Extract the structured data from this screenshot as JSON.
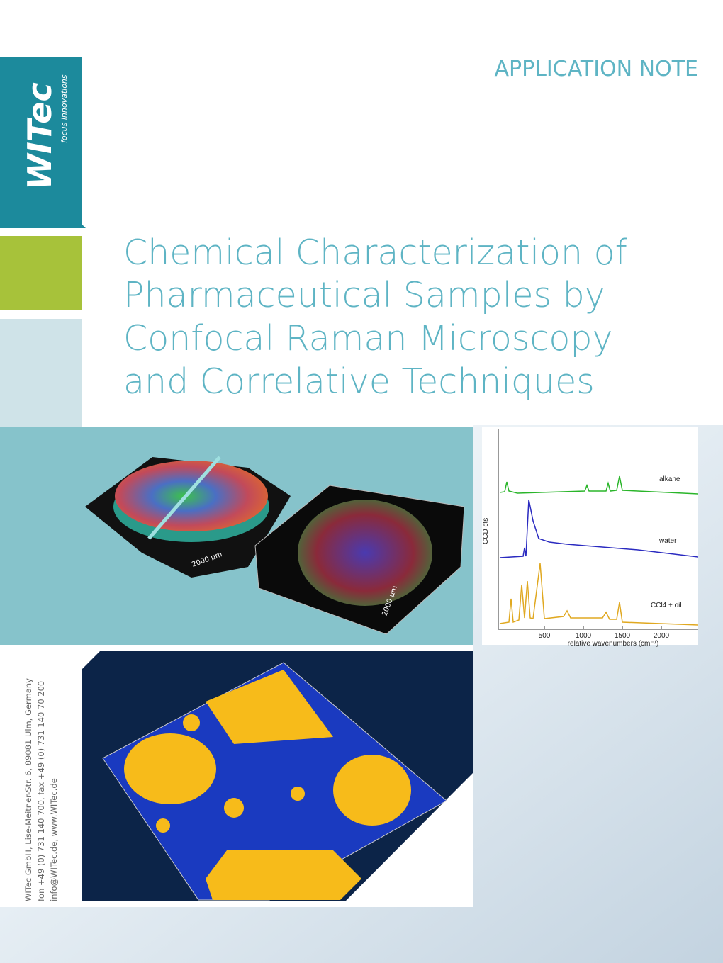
{
  "header": {
    "label": "APPLICATION NOTE"
  },
  "logo": {
    "name": "WITec",
    "tagline": "focus innovations"
  },
  "title": {
    "lines": [
      "Chemical Characterization of",
      "Pharmaceutical Samples by",
      "Confocal Raman Microscopy",
      "and Correlative Techniques"
    ]
  },
  "figures": {
    "scale_left": "2000 µm",
    "scale_right": "2000 µm"
  },
  "spectrum": {
    "y_label": "CCD cts",
    "series": [
      "alkane",
      "water",
      "CCl4 + oil"
    ],
    "xticks": [
      500,
      1000,
      1500,
      2000
    ],
    "x_label": "relative wavenumbers (cm⁻¹)"
  },
  "address": {
    "lines": [
      "WITec GmbH, Lise-Meitner-Str. 6, 89081 Ulm, Germany",
      "fon +49 (0) 731 140 700, fax +49 (0) 731 140 70 200",
      "info@WITec.de, www.WITec.de"
    ]
  }
}
